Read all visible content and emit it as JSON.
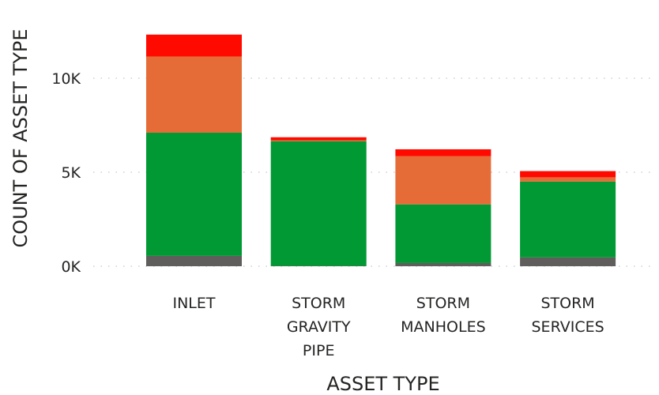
{
  "chart_data": {
    "type": "bar",
    "stacked": true,
    "title": "",
    "xlabel": "ASSET TYPE",
    "ylabel": "COUNT OF ASSET TYPE",
    "ylim": [
      0,
      12500
    ],
    "yticks": [
      0,
      5000,
      10000
    ],
    "ytick_labels": [
      "0K",
      "5K",
      "10K"
    ],
    "grid": true,
    "legend": "none",
    "categories": [
      [
        "INLET"
      ],
      [
        "STORM",
        "GRAVITY",
        "PIPE"
      ],
      [
        "STORM",
        "MANHOLES"
      ],
      [
        "STORM",
        "SERVICES"
      ]
    ],
    "series": [
      {
        "color": "#605e5c",
        "values": [
          550,
          20,
          170,
          470
        ]
      },
      {
        "color": "#009933",
        "values": [
          6550,
          6630,
          3120,
          4030
        ]
      },
      {
        "color": "#e66c37",
        "values": [
          4050,
          50,
          2560,
          230
        ]
      },
      {
        "color": "#ff0a00",
        "values": [
          1170,
          160,
          370,
          330
        ]
      }
    ]
  }
}
